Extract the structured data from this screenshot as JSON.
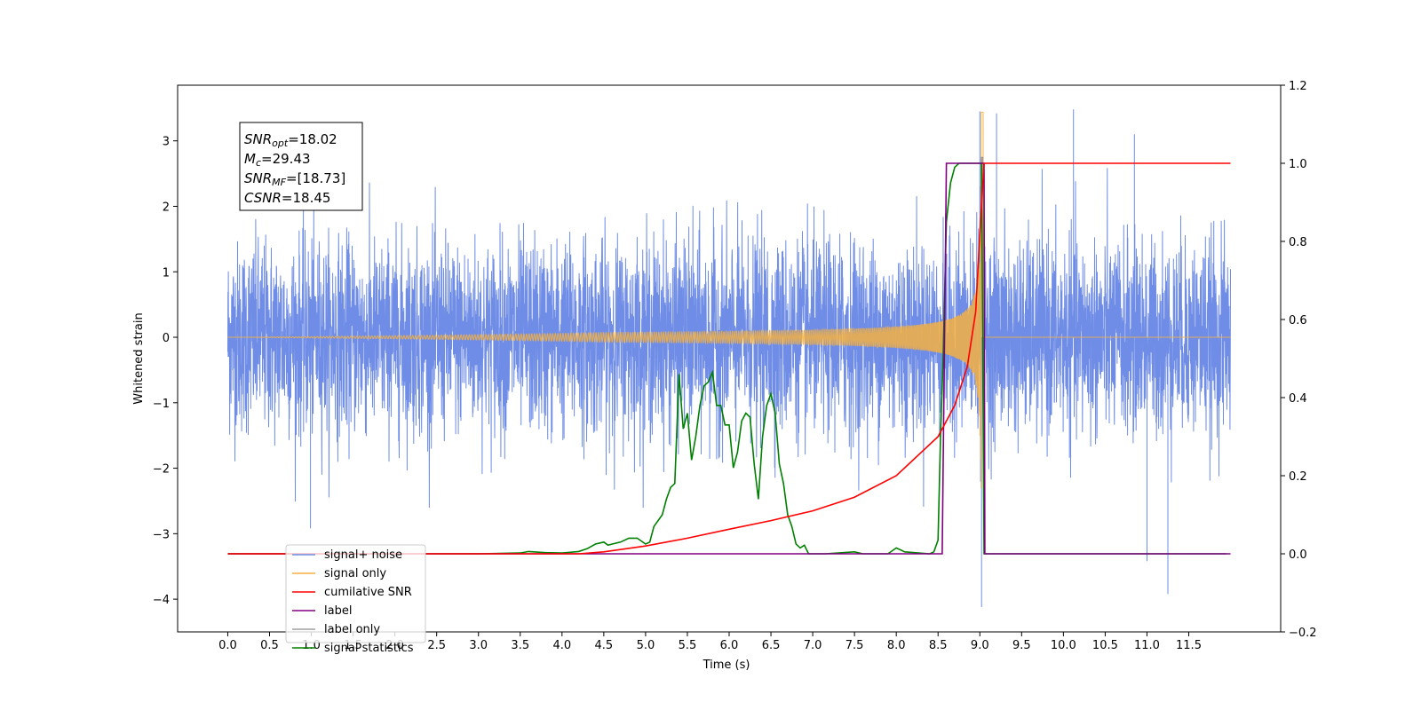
{
  "chart_data": {
    "type": "line",
    "xlabel": "Time (s)",
    "ylabel_left": "Whitened strain",
    "ylabel_right": "",
    "xlim": [
      -0.6,
      12.6
    ],
    "ylim_left": [
      -4.5,
      3.85
    ],
    "ylim_right": [
      -0.2,
      1.2
    ],
    "x_ticks": [
      "0.0",
      "0.5",
      "1.0",
      "1.5",
      "2.0",
      "2.5",
      "3.0",
      "3.5",
      "4.0",
      "4.5",
      "5.0",
      "5.5",
      "6.0",
      "6.5",
      "7.0",
      "7.5",
      "8.0",
      "8.5",
      "9.0",
      "9.5",
      "10.0",
      "10.5",
      "11.0",
      "11.5"
    ],
    "y_ticks_left": [
      "3",
      "2",
      "1",
      "0",
      "−1",
      "−2",
      "−3",
      "−4"
    ],
    "y_ticks_right": [
      "1.2",
      "1.0",
      "0.8",
      "0.6",
      "0.4",
      "0.2",
      "0.0",
      "−0.2"
    ],
    "grid": false,
    "legend_position": "lower-left",
    "annotation": {
      "snr_opt": {
        "symbol": "SNR",
        "sub": "opt",
        "value": "=18.02"
      },
      "mc": {
        "symbol": "M",
        "sub": "c",
        "value": "=29.43"
      },
      "snr_mf": {
        "symbol": "SNR",
        "sub": "MF",
        "value": "=[18.73]"
      },
      "csnr": {
        "symbol": "CSNR",
        "sub": "",
        "value": "=18.45"
      }
    },
    "series": [
      {
        "name": "signal+ noise",
        "axis": "left",
        "color": "#6f8de6",
        "description": "noisy whitened strain, roughly between -2.5 and 2.7 with sparse spikes",
        "x_range": [
          0.0,
          12.0
        ],
        "peaks": [
          {
            "x": 0.99,
            "y": -2.92
          },
          {
            "x": 9.0,
            "y": 3.45
          },
          {
            "x": 9.02,
            "y": -4.12
          },
          {
            "x": 9.2,
            "y": 3.42
          },
          {
            "x": 10.12,
            "y": 3.48
          },
          {
            "x": 10.85,
            "y": 3.1
          },
          {
            "x": 11.0,
            "y": -3.42
          },
          {
            "x": 11.25,
            "y": -3.92
          }
        ]
      },
      {
        "name": "signal only",
        "axis": "left",
        "color": "#f5b041",
        "description": "chirp growing in amplitude and frequency, merging near 9.0 s",
        "chirp_start_x": 4.5,
        "merger_x": 9.02,
        "merger_amplitude": 3.45
      },
      {
        "name": "cumilative SNR",
        "axis": "right",
        "color": "#ff0000",
        "x": [
          0.0,
          4.2,
          4.5,
          5.0,
          5.5,
          6.0,
          6.5,
          7.0,
          7.5,
          8.0,
          8.5,
          8.7,
          8.85,
          8.95,
          9.0,
          9.03,
          9.05,
          12.0
        ],
        "y": [
          0.0,
          0.0,
          0.005,
          0.02,
          0.04,
          0.063,
          0.085,
          0.11,
          0.145,
          0.2,
          0.3,
          0.38,
          0.48,
          0.62,
          0.82,
          0.93,
          1.0,
          1.0
        ]
      },
      {
        "name": "label",
        "axis": "right",
        "color": "#800080",
        "x": [
          0.0,
          8.55,
          8.6,
          9.05,
          9.06,
          12.0
        ],
        "y": [
          0.0,
          0.0,
          1.0,
          1.0,
          0.0,
          0.0
        ]
      },
      {
        "name": "label only",
        "axis": "right",
        "color": "#a0a0a0",
        "x": [],
        "y": []
      },
      {
        "name": "signal statistics",
        "axis": "right",
        "color": "#008000",
        "x": [
          0.0,
          3.0,
          3.5,
          3.6,
          3.8,
          4.0,
          4.2,
          4.3,
          4.4,
          4.5,
          4.55,
          4.6,
          4.7,
          4.8,
          4.9,
          5.0,
          5.05,
          5.1,
          5.2,
          5.25,
          5.3,
          5.35,
          5.4,
          5.45,
          5.5,
          5.55,
          5.6,
          5.65,
          5.7,
          5.75,
          5.8,
          5.85,
          5.9,
          5.95,
          6.0,
          6.05,
          6.1,
          6.15,
          6.2,
          6.25,
          6.3,
          6.35,
          6.4,
          6.45,
          6.5,
          6.55,
          6.6,
          6.65,
          6.7,
          6.75,
          6.8,
          6.85,
          6.9,
          6.95,
          7.0,
          7.05,
          7.1,
          7.15,
          7.5,
          7.6,
          7.9,
          8.0,
          8.1,
          8.4,
          8.45,
          8.5,
          8.53,
          8.56,
          8.6,
          8.65,
          8.7,
          8.75,
          8.8,
          8.9,
          8.95,
          9.0,
          9.02,
          9.05,
          9.06,
          11.95
        ],
        "y": [
          0.0,
          0.0,
          0.002,
          0.006,
          0.003,
          0.002,
          0.006,
          0.013,
          0.025,
          0.03,
          0.022,
          0.025,
          0.03,
          0.04,
          0.04,
          0.025,
          0.03,
          0.07,
          0.1,
          0.14,
          0.17,
          0.18,
          0.46,
          0.32,
          0.36,
          0.24,
          0.3,
          0.38,
          0.43,
          0.44,
          0.465,
          0.38,
          0.38,
          0.33,
          0.33,
          0.22,
          0.26,
          0.34,
          0.36,
          0.35,
          0.23,
          0.14,
          0.3,
          0.38,
          0.41,
          0.36,
          0.23,
          0.18,
          0.1,
          0.07,
          0.025,
          0.015,
          0.022,
          0.0,
          0.0,
          0.0,
          0.0,
          0.0,
          0.005,
          0.0,
          0.0,
          0.015,
          0.005,
          0.0,
          0.005,
          0.035,
          0.3,
          0.5,
          0.85,
          0.95,
          0.99,
          1.0,
          1.0,
          1.0,
          1.0,
          1.0,
          1.0,
          0.0,
          0.0,
          0.0
        ]
      }
    ]
  }
}
